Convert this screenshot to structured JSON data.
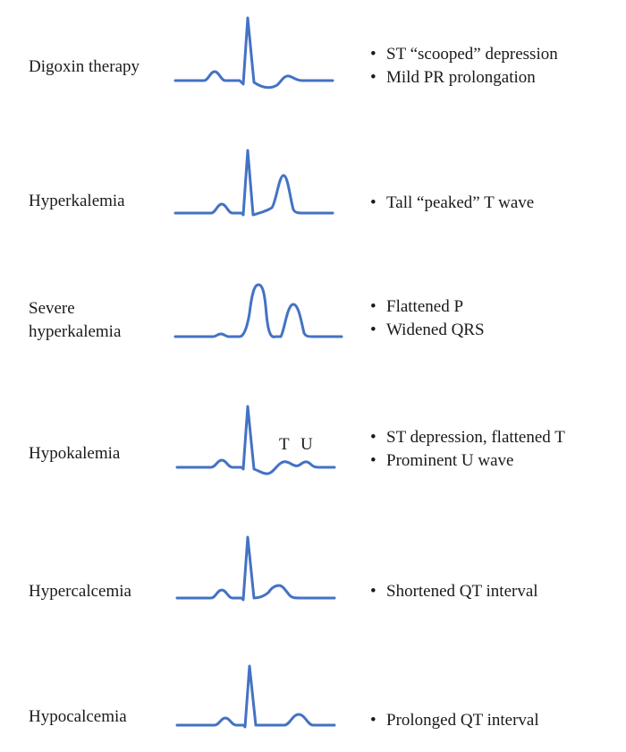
{
  "rows": [
    {
      "label": [
        "Digoxin therapy"
      ],
      "bullets": [
        "ST “scooped” depression",
        "Mild PR prolongation"
      ]
    },
    {
      "label": [
        "Hyperkalemia"
      ],
      "bullets": [
        "Tall “peaked” T wave"
      ]
    },
    {
      "label": [
        "Severe",
        "hyperkalemia"
      ],
      "bullets": [
        "Flattened P",
        "Widened QRS"
      ]
    },
    {
      "label": [
        "Hypokalemia"
      ],
      "bullets": [
        "ST depression, flattened T",
        "Prominent U wave"
      ],
      "annotations": [
        "T",
        "U"
      ]
    },
    {
      "label": [
        "Hypercalcemia"
      ],
      "bullets": [
        "Shortened QT interval"
      ]
    },
    {
      "label": [
        "Hypocalcemia"
      ],
      "bullets": [
        "Prolonged QT interval"
      ]
    }
  ],
  "bullet_char": "•",
  "colors": {
    "wave": "#4472c4",
    "text": "#1a1a1a"
  }
}
